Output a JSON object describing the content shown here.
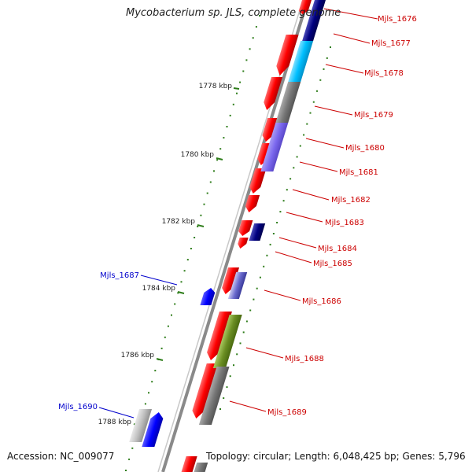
{
  "title": "Mycobacterium sp. JLS, complete genome",
  "footer": {
    "accession": "Accession: NC_009077",
    "summary": "Topology: circular; Length: 6,048,425 bp; Genes: 5,796"
  },
  "colors": {
    "backbone": "#8a8a8a",
    "forward_label": "#cc0000",
    "reverse_label": "#0000cc",
    "tick": "#2e7d1a"
  },
  "kbp_ticks": [
    "1778 kbp",
    "1780 kbp",
    "1782 kbp",
    "1784 kbp",
    "1786 kbp",
    "1788 kbp"
  ],
  "genes_forward_strand": [
    {
      "label": "Mjls_1676",
      "color": "#ff0000"
    },
    {
      "label": "Mjls_1677",
      "color": "#ff0000"
    },
    {
      "label": "Mjls_1678",
      "color": "#00bfff"
    },
    {
      "label": "Mjls_1679",
      "color": "#777777"
    },
    {
      "label": "Mjls_1680",
      "color": "#7b68ee"
    },
    {
      "label": "Mjls_1681",
      "color": "#ff0000"
    },
    {
      "label": "Mjls_1682",
      "color": "#ff0000"
    },
    {
      "label": "Mjls_1683",
      "color": "#ff0000"
    },
    {
      "label": "Mjls_1684",
      "color": "#000080"
    },
    {
      "label": "Mjls_1685",
      "color": "#ff0000"
    },
    {
      "label": "Mjls_1686",
      "color": "#6a6acd"
    },
    {
      "label": "Mjls_1688",
      "color": "#6b8e23"
    },
    {
      "label": "Mjls_1689",
      "color": "#777777"
    }
  ],
  "genes_reverse_strand": [
    {
      "label": "Mjls_1687",
      "color": "#0000ff"
    },
    {
      "label": "Mjls_1690",
      "color": "#0000ff"
    }
  ]
}
